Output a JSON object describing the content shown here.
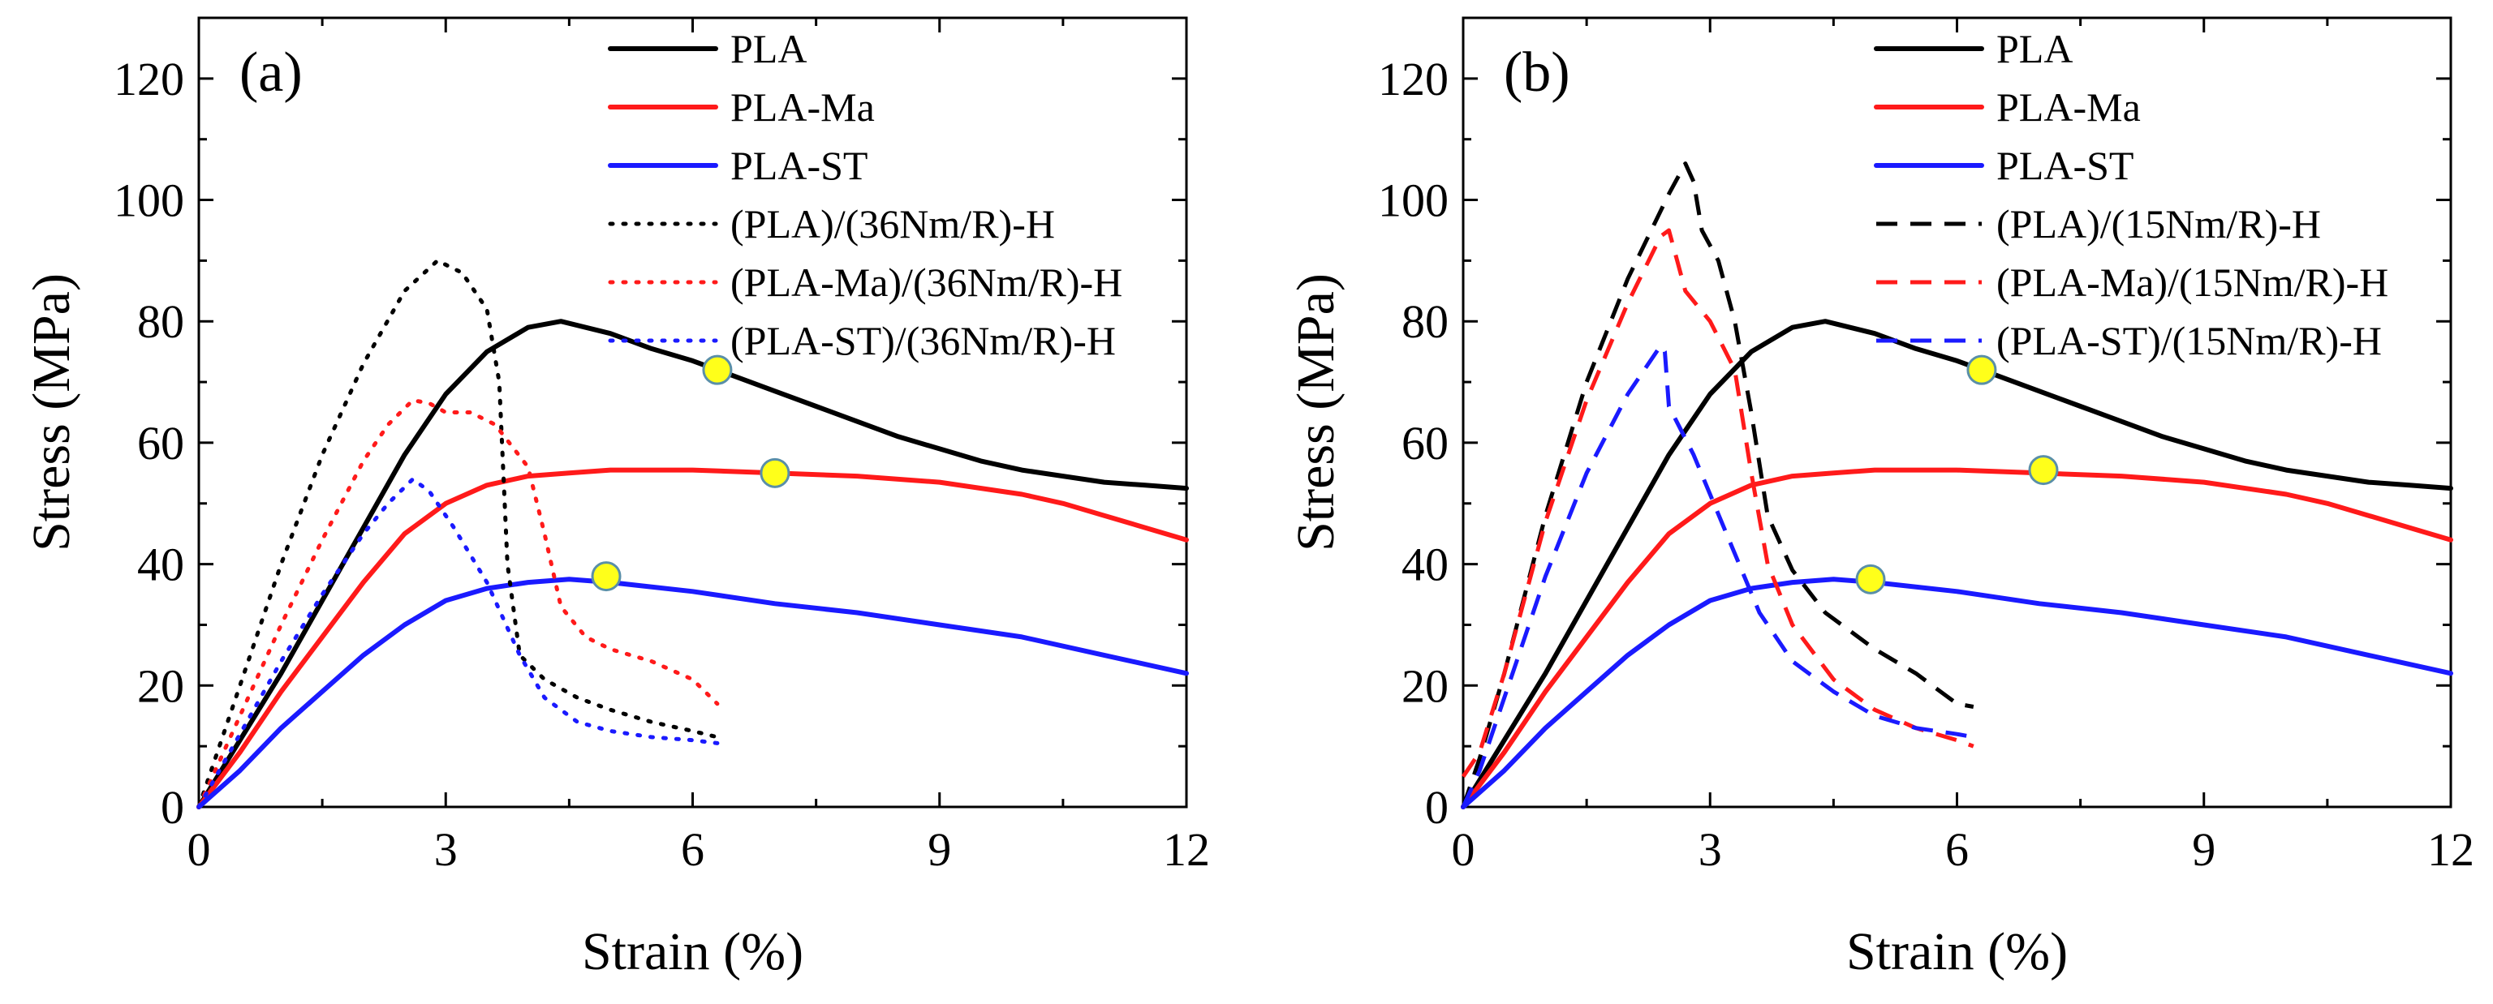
{
  "figure": {
    "description_hidden": false
  },
  "colors": {
    "black": "#000000",
    "red": "#ff1a1a",
    "blue": "#1a1aff",
    "marker_fill": "#ffff1a",
    "marker_edge": "#5a8fa8"
  },
  "chart_data": [
    {
      "type": "line",
      "panel_label": "(a)",
      "xlabel": "Strain (%)",
      "ylabel": "Stress (MPa)",
      "xlim": [
        0,
        12
      ],
      "ylim": [
        0,
        130
      ],
      "xticks": [
        0,
        3,
        6,
        9,
        12
      ],
      "yticks": [
        0,
        20,
        40,
        60,
        80,
        100,
        120
      ],
      "series": [
        {
          "name": "PLA",
          "color": "#000000",
          "style": "solid",
          "x": [
            0,
            0.5,
            1,
            1.5,
            2,
            2.5,
            3,
            3.5,
            4,
            4.4,
            5,
            5.5,
            6,
            6.5,
            7,
            7.5,
            8,
            8.5,
            9,
            9.5,
            10,
            10.5,
            11,
            11.5,
            12
          ],
          "y": [
            0,
            11,
            22,
            34,
            46,
            58,
            68,
            75,
            79,
            80,
            78,
            75.5,
            73.5,
            71,
            68.5,
            66,
            63.5,
            61,
            59,
            57,
            55.5,
            54.5,
            53.5,
            53,
            52.5
          ]
        },
        {
          "name": "PLA-Ma",
          "color": "#ff1a1a",
          "style": "solid",
          "x": [
            0,
            0.5,
            1,
            1.5,
            2,
            2.5,
            3,
            3.5,
            4,
            4.5,
            5,
            6,
            7,
            8,
            9,
            10,
            10.5,
            11,
            11.5,
            12
          ],
          "y": [
            0,
            9,
            19,
            28,
            37,
            45,
            50,
            53,
            54.5,
            55,
            55.5,
            55.5,
            55,
            54.5,
            53.5,
            51.5,
            50,
            48,
            46,
            44
          ]
        },
        {
          "name": "PLA-ST",
          "color": "#1a1aff",
          "style": "solid",
          "x": [
            0,
            0.5,
            1,
            1.5,
            2,
            2.5,
            3,
            3.5,
            4,
            4.5,
            5,
            6,
            7,
            8,
            9,
            10,
            11,
            12
          ],
          "y": [
            0,
            6,
            13,
            19,
            25,
            30,
            34,
            36,
            37,
            37.5,
            37,
            35.5,
            33.5,
            32,
            30,
            28,
            25,
            22
          ]
        },
        {
          "name": "(PLA)/(36Nm/R)-H",
          "color": "#000000",
          "style": "dotted",
          "x": [
            0,
            0.5,
            1,
            1.5,
            2,
            2.5,
            2.9,
            3.2,
            3.5,
            3.65,
            3.75,
            3.9,
            4.2,
            4.6,
            5,
            5.5,
            6,
            6.3
          ],
          "y": [
            0,
            20,
            40,
            58,
            73,
            85,
            90,
            88,
            82,
            70,
            40,
            25,
            21,
            18,
            16,
            14,
            12.5,
            11.5
          ]
        },
        {
          "name": "(PLA-Ma)/(36Nm/R)-H",
          "color": "#ff1a1a",
          "style": "dotted",
          "x": [
            0,
            0.5,
            1,
            1.5,
            2,
            2.3,
            2.6,
            2.8,
            3,
            3.3,
            3.6,
            4,
            4.2,
            4.4,
            4.7,
            5,
            5.5,
            6,
            6.3
          ],
          "y": [
            0,
            15,
            30,
            44,
            57,
            63,
            67,
            66.5,
            65,
            65,
            63,
            56,
            45,
            33,
            28,
            26,
            24,
            21,
            17
          ]
        },
        {
          "name": "(PLA-ST)/(36Nm/R)-H",
          "color": "#1a1aff",
          "style": "dotted",
          "x": [
            0,
            0.5,
            1,
            1.5,
            2,
            2.3,
            2.6,
            2.8,
            3.1,
            3.5,
            3.9,
            4.2,
            4.6,
            5,
            5.5,
            6,
            6.3
          ],
          "y": [
            0,
            12,
            24,
            35,
            45,
            50,
            54,
            52,
            46,
            37,
            25,
            18,
            14,
            12.5,
            11.5,
            11,
            10.5
          ]
        }
      ],
      "markers": [
        {
          "x": 6.3,
          "y": 72
        },
        {
          "x": 7.0,
          "y": 55
        },
        {
          "x": 4.95,
          "y": 38
        }
      ]
    },
    {
      "type": "line",
      "panel_label": "(b)",
      "xlabel": "Strain (%)",
      "ylabel": "Stress (MPa)",
      "xlim": [
        0,
        12
      ],
      "ylim": [
        0,
        130
      ],
      "xticks": [
        0,
        3,
        6,
        9,
        12
      ],
      "yticks": [
        0,
        20,
        40,
        60,
        80,
        100,
        120
      ],
      "series": [
        {
          "name": "PLA",
          "color": "#000000",
          "style": "solid",
          "x": [
            0,
            0.5,
            1,
            1.5,
            2,
            2.5,
            3,
            3.5,
            4,
            4.4,
            5,
            5.5,
            6,
            6.5,
            7,
            7.5,
            8,
            8.5,
            9,
            9.5,
            10,
            10.5,
            11,
            11.5,
            12
          ],
          "y": [
            0,
            11,
            22,
            34,
            46,
            58,
            68,
            75,
            79,
            80,
            78,
            75.5,
            73.5,
            71,
            68.5,
            66,
            63.5,
            61,
            59,
            57,
            55.5,
            54.5,
            53.5,
            53,
            52.5
          ]
        },
        {
          "name": "PLA-Ma",
          "color": "#ff1a1a",
          "style": "solid",
          "x": [
            0,
            0.5,
            1,
            1.5,
            2,
            2.5,
            3,
            3.5,
            4,
            4.5,
            5,
            6,
            7,
            8,
            9,
            10,
            10.5,
            11,
            11.5,
            12
          ],
          "y": [
            0,
            9,
            19,
            28,
            37,
            45,
            50,
            53,
            54.5,
            55,
            55.5,
            55.5,
            55,
            54.5,
            53.5,
            51.5,
            50,
            48,
            46,
            44
          ]
        },
        {
          "name": "PLA-ST",
          "color": "#1a1aff",
          "style": "solid",
          "x": [
            0,
            0.5,
            1,
            1.5,
            2,
            2.5,
            3,
            3.5,
            4,
            4.5,
            5,
            6,
            7,
            8,
            9,
            10,
            11,
            12
          ],
          "y": [
            0,
            6,
            13,
            19,
            25,
            30,
            34,
            36,
            37,
            37.5,
            37,
            35.5,
            33.5,
            32,
            30,
            28,
            25,
            22
          ]
        },
        {
          "name": "(PLA)/(15Nm/R)-H",
          "color": "#000000",
          "style": "dashed",
          "x": [
            0,
            0.2,
            0.5,
            1,
            1.5,
            2,
            2.5,
            2.7,
            2.8,
            2.9,
            3.1,
            3.3,
            3.5,
            3.7,
            4,
            4.4,
            5,
            5.5,
            6,
            6.2
          ],
          "y": [
            0,
            8,
            22,
            48,
            70,
            87,
            101,
            106,
            103,
            95,
            90,
            80,
            65,
            48,
            39,
            32,
            26,
            22,
            17,
            16.5
          ]
        },
        {
          "name": "(PLA-Ma)/(15Nm/R)-H",
          "color": "#ff1a1a",
          "style": "dashed",
          "x": [
            0,
            0.2,
            0.5,
            1,
            1.5,
            2,
            2.4,
            2.5,
            2.6,
            2.7,
            3,
            3.3,
            3.5,
            3.7,
            4,
            4.5,
            5,
            5.5,
            6,
            6.2
          ],
          "y": [
            5,
            9,
            22,
            47,
            67,
            83,
            94,
            95,
            90,
            85,
            80,
            72,
            55,
            40,
            30,
            21,
            16,
            13,
            11,
            10
          ]
        },
        {
          "name": "(PLA-ST)/(15Nm/R)-H",
          "color": "#1a1aff",
          "style": "dashed",
          "x": [
            0,
            0.2,
            0.5,
            1,
            1.5,
            2,
            2.4,
            2.45,
            2.5,
            2.8,
            3.2,
            3.6,
            4,
            4.5,
            5,
            5.5,
            6,
            6.2
          ],
          "y": [
            0,
            6,
            18,
            38,
            55,
            68,
            76,
            75,
            66,
            58,
            45,
            32,
            24,
            19,
            15,
            13,
            12,
            11.5
          ]
        }
      ],
      "markers": [
        {
          "x": 6.3,
          "y": 72
        },
        {
          "x": 7.05,
          "y": 55.5
        },
        {
          "x": 4.95,
          "y": 37.5
        }
      ]
    }
  ]
}
